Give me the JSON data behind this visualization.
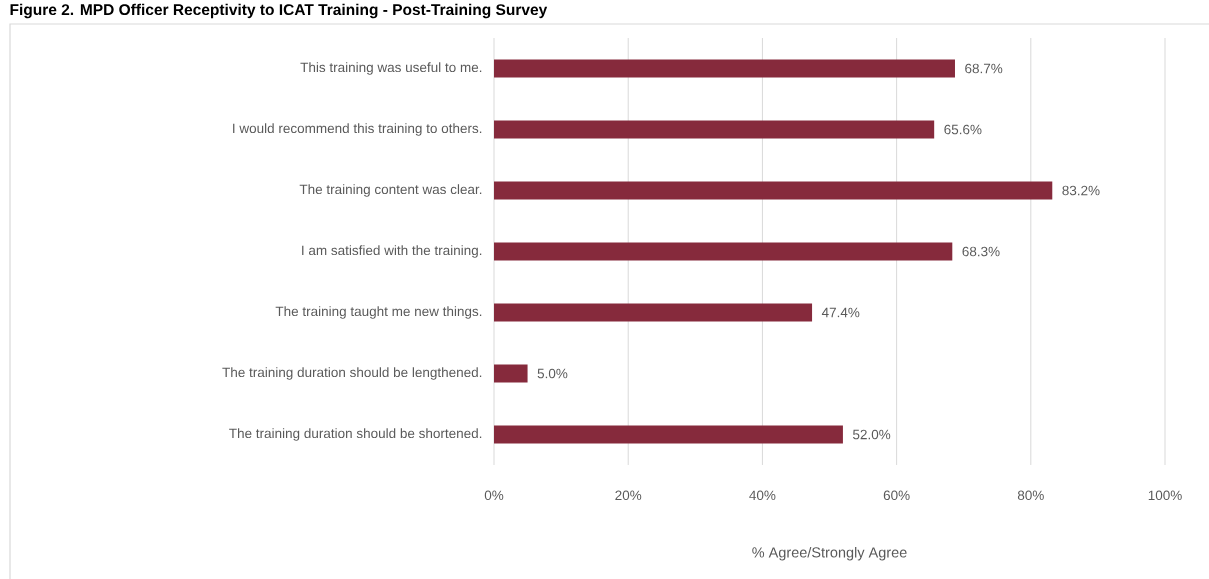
{
  "chart_data": {
    "type": "bar",
    "orientation": "horizontal",
    "title": "Figure 2. MPD Officer Receptivity to ICAT Training - Post-Training Survey",
    "xlabel": "% Agree/Strongly Agree",
    "categories": [
      "This training was useful to me.",
      "I would recommend this training to others.",
      "The training content was clear.",
      "I am satisfied with the training.",
      "The training taught me new things.",
      "The training duration should be lengthened.",
      "The training duration should be shortened."
    ],
    "values": [
      68.7,
      65.6,
      83.2,
      68.3,
      47.4,
      5.0,
      52.0
    ],
    "value_labels": [
      "68.7%",
      "65.6%",
      "83.2%",
      "68.3%",
      "47.4%",
      "5.0%",
      "52.0%"
    ],
    "color": "#862a3c",
    "xlim": [
      0,
      100
    ],
    "xticks": [
      {
        "value": 0,
        "label": "0%"
      },
      {
        "value": 20,
        "label": "20%"
      },
      {
        "value": 40,
        "label": "40%"
      },
      {
        "value": 60,
        "label": "60%"
      },
      {
        "value": 80,
        "label": "80%"
      },
      {
        "value": 100,
        "label": "100%"
      }
    ],
    "grid": "x"
  }
}
